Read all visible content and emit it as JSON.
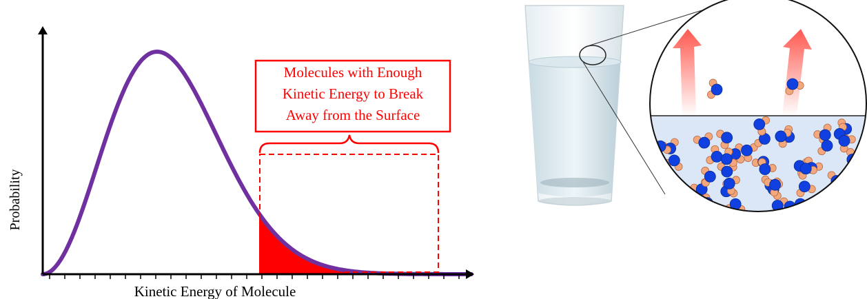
{
  "graph": {
    "y_axis_label": "Probability",
    "x_axis_label": "Kinetic Energy of Molecule",
    "annotation": [
      "Molecules with Enough",
      "Kinetic Energy to Break",
      "Away from the Surface"
    ]
  }
}
